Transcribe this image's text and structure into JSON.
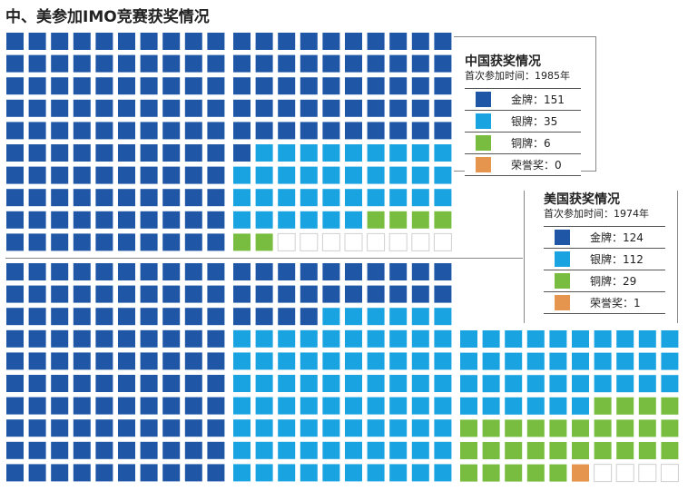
{
  "title": "中、美参加IMO竞赛获奖情况",
  "chart_data": [
    {
      "type": "waffle",
      "name": "中国",
      "legend_title": "中国获奖情况",
      "legend_sub": "首次参加时间：1985年",
      "categories": [
        "金牌",
        "银牌",
        "铜牌",
        "荣誉奖"
      ],
      "values": [
        151,
        35,
        6,
        0
      ],
      "colors": [
        "#1f57a6",
        "#1aa3e1",
        "#78bd3f",
        "#e5954e"
      ],
      "blocks": 2
    },
    {
      "type": "waffle",
      "name": "美国",
      "legend_title": "美国获奖情况",
      "legend_sub": "首次参加时间：1974年",
      "categories": [
        "金牌",
        "银牌",
        "铜牌",
        "荣誉奖"
      ],
      "values": [
        124,
        112,
        29,
        1
      ],
      "colors": [
        "#1f57a6",
        "#1aa3e1",
        "#78bd3f",
        "#e5954e"
      ],
      "blocks": 3
    }
  ]
}
